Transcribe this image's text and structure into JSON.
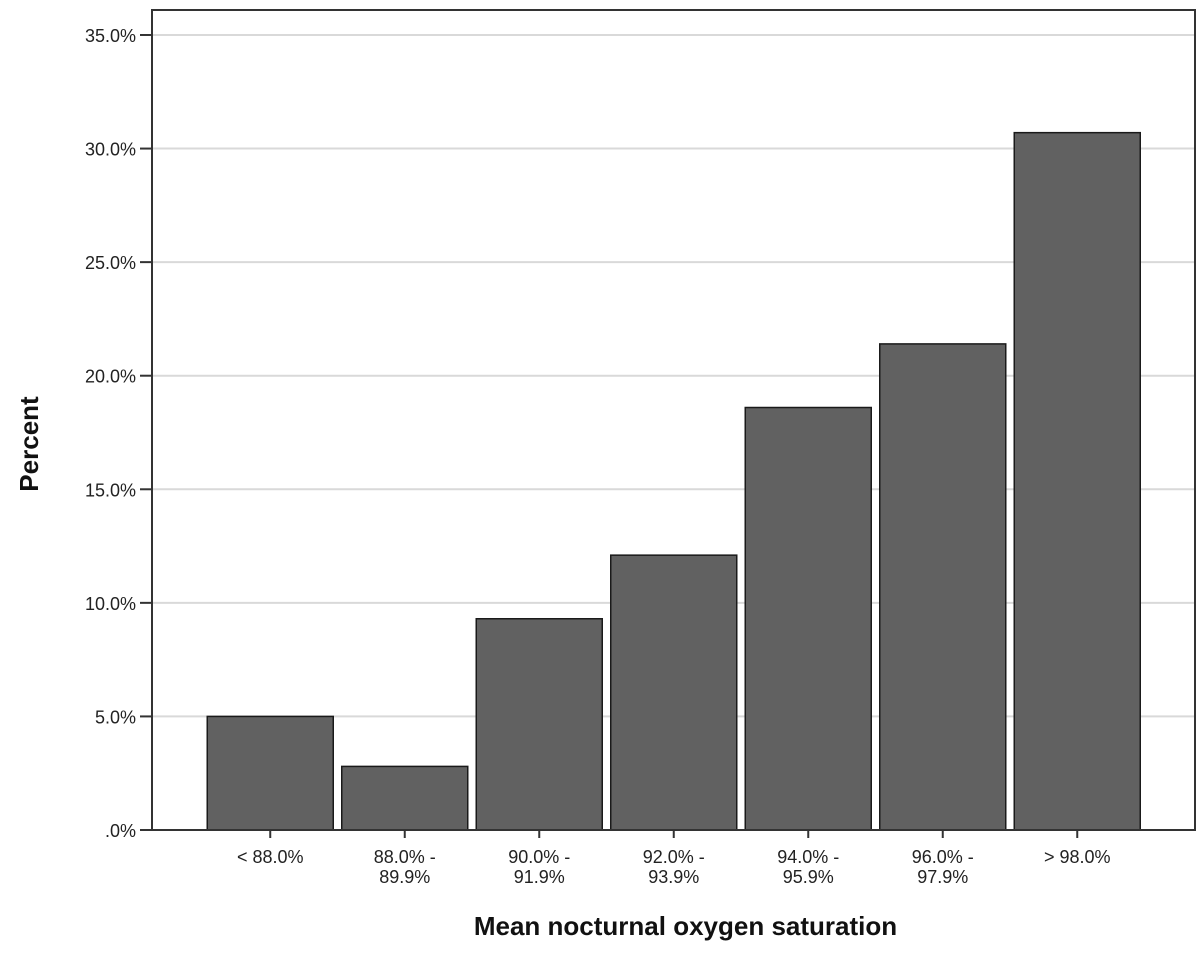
{
  "chart_data": {
    "type": "bar",
    "categories": [
      [
        "< 88.0%"
      ],
      [
        "88.0% -",
        "89.9%"
      ],
      [
        "90.0% -",
        "91.9%"
      ],
      [
        "92.0% -",
        "93.9%"
      ],
      [
        "94.0% -",
        "95.9%"
      ],
      [
        "96.0% -",
        "97.9%"
      ],
      [
        "> 98.0%"
      ]
    ],
    "values": [
      5.0,
      2.8,
      9.3,
      12.1,
      18.6,
      21.4,
      30.7
    ],
    "title": "",
    "xlabel": "Mean nocturnal oxygen saturation",
    "ylabel": "Percent",
    "ylim": [
      0,
      35
    ],
    "yticks": [
      0,
      5,
      10,
      15,
      20,
      25,
      30,
      35
    ],
    "ytick_labels": [
      ".0%",
      "5.0%",
      "10.0%",
      "15.0%",
      "20.0%",
      "25.0%",
      "30.0%",
      "35.0%"
    ],
    "grid": true,
    "bar_color": "#616161",
    "bar_edge_color": "#1a1a1a",
    "grid_color": "#d9d9d9",
    "axis_color": "#333333"
  }
}
